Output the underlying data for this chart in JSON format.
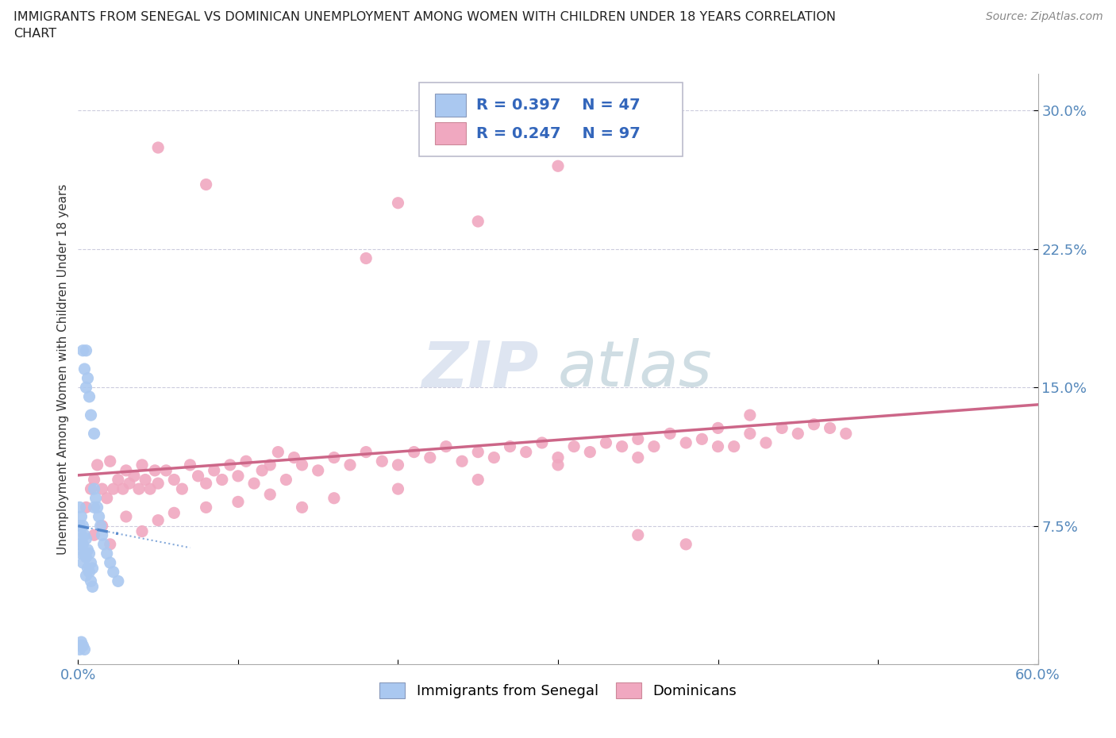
{
  "title_line1": "IMMIGRANTS FROM SENEGAL VS DOMINICAN UNEMPLOYMENT AMONG WOMEN WITH CHILDREN UNDER 18 YEARS CORRELATION",
  "title_line2": "CHART",
  "source": "Source: ZipAtlas.com",
  "ylabel": "Unemployment Among Women with Children Under 18 years",
  "xlim": [
    0.0,
    0.6
  ],
  "ylim": [
    0.0,
    0.32
  ],
  "R_senegal": 0.397,
  "N_senegal": 47,
  "R_dominican": 0.247,
  "N_dominican": 97,
  "color_senegal": "#aac8f0",
  "color_dominican": "#f0a8c0",
  "trendline_senegal": "#5588cc",
  "trendline_dominican": "#cc6688",
  "watermark_zip": "ZIP",
  "watermark_atlas": "atlas",
  "senegal_x": [
    0.001,
    0.001,
    0.001,
    0.002,
    0.002,
    0.002,
    0.003,
    0.003,
    0.003,
    0.004,
    0.004,
    0.005,
    0.005,
    0.005,
    0.006,
    0.006,
    0.007,
    0.007,
    0.008,
    0.008,
    0.009,
    0.009,
    0.01,
    0.01,
    0.011,
    0.012,
    0.013,
    0.014,
    0.015,
    0.016,
    0.018,
    0.02,
    0.022,
    0.025,
    0.001,
    0.001,
    0.002,
    0.003,
    0.004,
    0.005,
    0.006,
    0.007,
    0.008,
    0.01,
    0.003,
    0.004,
    0.005
  ],
  "senegal_y": [
    0.085,
    0.075,
    0.065,
    0.08,
    0.07,
    0.06,
    0.075,
    0.065,
    0.055,
    0.07,
    0.06,
    0.068,
    0.058,
    0.048,
    0.062,
    0.052,
    0.06,
    0.05,
    0.055,
    0.045,
    0.052,
    0.042,
    0.095,
    0.085,
    0.09,
    0.085,
    0.08,
    0.075,
    0.07,
    0.065,
    0.06,
    0.055,
    0.05,
    0.045,
    0.01,
    0.008,
    0.012,
    0.01,
    0.008,
    0.17,
    0.155,
    0.145,
    0.135,
    0.125,
    0.17,
    0.16,
    0.15
  ],
  "dominican_x": [
    0.005,
    0.008,
    0.01,
    0.012,
    0.015,
    0.018,
    0.02,
    0.022,
    0.025,
    0.028,
    0.03,
    0.032,
    0.035,
    0.038,
    0.04,
    0.042,
    0.045,
    0.048,
    0.05,
    0.055,
    0.06,
    0.065,
    0.07,
    0.075,
    0.08,
    0.085,
    0.09,
    0.095,
    0.1,
    0.105,
    0.11,
    0.115,
    0.12,
    0.125,
    0.13,
    0.135,
    0.14,
    0.15,
    0.16,
    0.17,
    0.18,
    0.19,
    0.2,
    0.21,
    0.22,
    0.23,
    0.24,
    0.25,
    0.26,
    0.27,
    0.28,
    0.29,
    0.3,
    0.31,
    0.32,
    0.33,
    0.34,
    0.35,
    0.36,
    0.37,
    0.38,
    0.39,
    0.4,
    0.41,
    0.42,
    0.43,
    0.44,
    0.45,
    0.46,
    0.47,
    0.01,
    0.015,
    0.02,
    0.03,
    0.04,
    0.05,
    0.06,
    0.08,
    0.1,
    0.12,
    0.14,
    0.16,
    0.2,
    0.25,
    0.3,
    0.35,
    0.4,
    0.05,
    0.08,
    0.2,
    0.25,
    0.3,
    0.18,
    0.35,
    0.42,
    0.38,
    0.48
  ],
  "dominican_y": [
    0.085,
    0.095,
    0.1,
    0.108,
    0.095,
    0.09,
    0.11,
    0.095,
    0.1,
    0.095,
    0.105,
    0.098,
    0.102,
    0.095,
    0.108,
    0.1,
    0.095,
    0.105,
    0.098,
    0.105,
    0.1,
    0.095,
    0.108,
    0.102,
    0.098,
    0.105,
    0.1,
    0.108,
    0.102,
    0.11,
    0.098,
    0.105,
    0.108,
    0.115,
    0.1,
    0.112,
    0.108,
    0.105,
    0.112,
    0.108,
    0.115,
    0.11,
    0.108,
    0.115,
    0.112,
    0.118,
    0.11,
    0.115,
    0.112,
    0.118,
    0.115,
    0.12,
    0.112,
    0.118,
    0.115,
    0.12,
    0.118,
    0.122,
    0.118,
    0.125,
    0.12,
    0.122,
    0.128,
    0.118,
    0.125,
    0.12,
    0.128,
    0.125,
    0.13,
    0.128,
    0.07,
    0.075,
    0.065,
    0.08,
    0.072,
    0.078,
    0.082,
    0.085,
    0.088,
    0.092,
    0.085,
    0.09,
    0.095,
    0.1,
    0.108,
    0.112,
    0.118,
    0.28,
    0.26,
    0.25,
    0.24,
    0.27,
    0.22,
    0.07,
    0.135,
    0.065,
    0.125
  ]
}
